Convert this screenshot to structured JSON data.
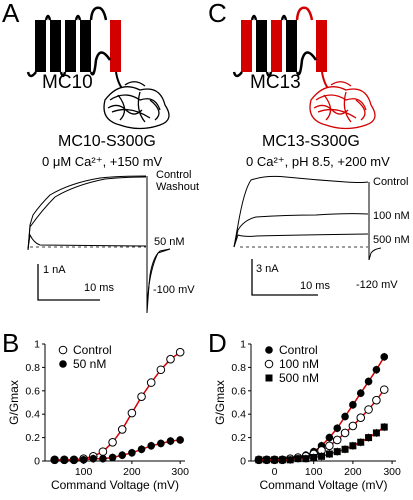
{
  "panel_a": {
    "label": "A",
    "construct": "MC10",
    "title": "MC10-S300G",
    "condition": "0 μM Ca²⁺, +150 mV",
    "trace_labels": [
      "Control",
      "Washout",
      "50 nM",
      "-100 mV"
    ],
    "scale_current": "1 nA",
    "scale_time": "10 ms",
    "colors": {
      "segment_highlight": "#d40000",
      "protein": "#000000"
    }
  },
  "panel_c": {
    "label": "C",
    "construct": "MC13",
    "title": "MC13-S300G",
    "condition": "0 Ca²⁺, pH 8.5, +200 mV",
    "trace_labels": [
      "Control",
      "100 nM",
      "500 nM",
      "-120 mV"
    ],
    "scale_current": "3 nA",
    "scale_time": "10 ms",
    "colors": {
      "segment_highlight": "#d40000",
      "protein": "#d40000"
    }
  },
  "panel_b": {
    "label": "B"
  },
  "panel_d": {
    "label": "D"
  },
  "chart_data": [
    {
      "type": "scatter",
      "panel": "B",
      "xlabel": "Command Voltage (mV)",
      "ylabel": "G/Gmax",
      "xlim": [
        20,
        310
      ],
      "ylim": [
        0,
        1.0
      ],
      "xticks": [
        "100",
        "200",
        "300"
      ],
      "yticks": [
        "0",
        "0.2",
        "0.4",
        "0.6",
        "0.8",
        "1"
      ],
      "legend_position": "top-left",
      "fit_color": "#d40000",
      "series": [
        {
          "name": "Control",
          "marker": "open-circle",
          "x": [
            40,
            60,
            80,
            100,
            120,
            140,
            160,
            180,
            200,
            220,
            240,
            260,
            280,
            300
          ],
          "y": [
            0.01,
            0.01,
            0.01,
            0.02,
            0.04,
            0.08,
            0.16,
            0.27,
            0.41,
            0.55,
            0.67,
            0.78,
            0.87,
            0.93
          ]
        },
        {
          "name": "50 nM",
          "marker": "filled-circle",
          "x": [
            40,
            60,
            80,
            100,
            120,
            140,
            160,
            180,
            200,
            220,
            240,
            260,
            280,
            300
          ],
          "y": [
            0.01,
            0.01,
            0.01,
            0.01,
            0.02,
            0.02,
            0.03,
            0.05,
            0.07,
            0.1,
            0.13,
            0.15,
            0.17,
            0.18
          ]
        }
      ]
    },
    {
      "type": "scatter",
      "panel": "D",
      "xlabel": "Command Voltage (mV)",
      "ylabel": "G/Gmax",
      "xlim": [
        -60,
        310
      ],
      "ylim": [
        0,
        1.0
      ],
      "xticks": [
        "0",
        "100",
        "200",
        "300"
      ],
      "yticks": [
        "0",
        "0.2",
        "0.4",
        "0.6",
        "0.8",
        "1"
      ],
      "legend_position": "top-left",
      "fit_color": "#d40000",
      "series": [
        {
          "name": "Control",
          "marker": "filled-circle",
          "x": [
            -40,
            -20,
            0,
            20,
            40,
            60,
            80,
            100,
            120,
            140,
            160,
            180,
            200,
            220,
            240,
            260,
            280
          ],
          "y": [
            0.01,
            0.01,
            0.01,
            0.01,
            0.02,
            0.03,
            0.05,
            0.08,
            0.13,
            0.2,
            0.28,
            0.38,
            0.48,
            0.58,
            0.68,
            0.78,
            0.89
          ]
        },
        {
          "name": "100 nM",
          "marker": "open-circle",
          "x": [
            -40,
            -20,
            0,
            20,
            40,
            60,
            80,
            100,
            120,
            140,
            160,
            180,
            200,
            220,
            240,
            260,
            280
          ],
          "y": [
            0.01,
            0.01,
            0.01,
            0.01,
            0.02,
            0.03,
            0.04,
            0.06,
            0.09,
            0.13,
            0.18,
            0.24,
            0.3,
            0.37,
            0.44,
            0.52,
            0.61
          ]
        },
        {
          "name": "500 nM",
          "marker": "filled-square",
          "x": [
            -40,
            -20,
            0,
            20,
            40,
            60,
            80,
            100,
            120,
            140,
            160,
            180,
            200,
            220,
            240,
            260,
            280
          ],
          "y": [
            0.01,
            0.01,
            0.01,
            0.01,
            0.01,
            0.02,
            0.02,
            0.03,
            0.04,
            0.06,
            0.08,
            0.1,
            0.13,
            0.16,
            0.2,
            0.24,
            0.29
          ]
        }
      ]
    }
  ]
}
